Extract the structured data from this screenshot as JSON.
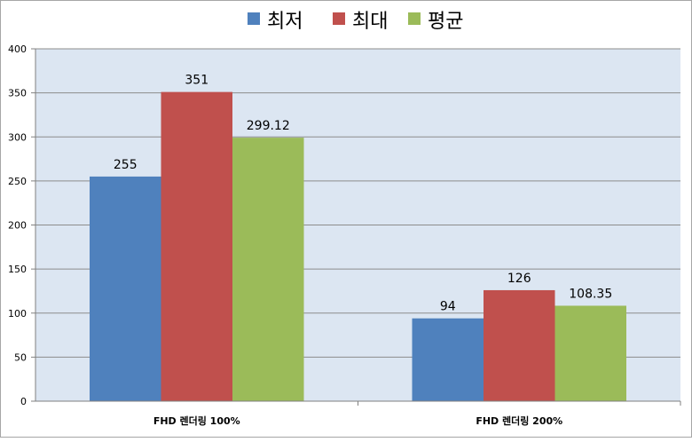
{
  "chart_data": {
    "type": "bar",
    "title": "",
    "xlabel": "",
    "ylabel": "",
    "categories": [
      "FHD 렌더링 100%",
      "FHD 렌더링 200%"
    ],
    "series": [
      {
        "name": "최저",
        "values": [
          255,
          94
        ],
        "labels": [
          "255",
          "94"
        ],
        "color": "#4f81bd"
      },
      {
        "name": "최대",
        "values": [
          351,
          126
        ],
        "labels": [
          "351",
          "126"
        ],
        "color": "#c0504d"
      },
      {
        "name": "평균",
        "values": [
          299.12,
          108.35
        ],
        "labels": [
          "299.12",
          "108.35"
        ],
        "color": "#9bbb59"
      }
    ],
    "ylim": [
      0,
      400
    ],
    "yticks": [
      0,
      50,
      100,
      150,
      200,
      250,
      300,
      350,
      400
    ],
    "grid": true,
    "legend": "top",
    "plot_background": "#dce6f2",
    "gridline_color": "#8c8c8c"
  }
}
